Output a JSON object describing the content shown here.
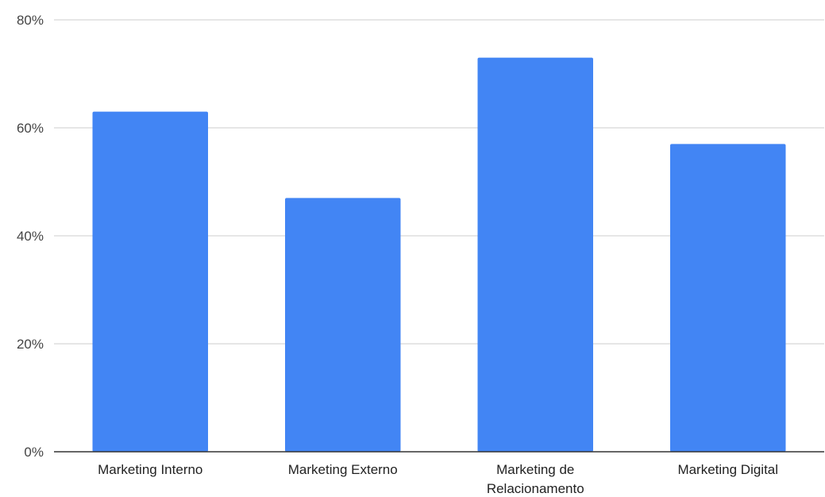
{
  "chart_data": {
    "type": "bar",
    "categories": [
      [
        "Marketing Interno"
      ],
      [
        "Marketing Externo"
      ],
      [
        "Marketing de",
        "Relacionamento"
      ],
      [
        "Marketing Digital"
      ]
    ],
    "values": [
      63,
      47,
      73,
      57
    ],
    "value_unit": "%",
    "ylim": [
      0,
      80
    ],
    "yticks": [
      0,
      20,
      40,
      60,
      80
    ],
    "ytick_labels": [
      "0%",
      "20%",
      "40%",
      "60%",
      "80%"
    ],
    "grid": true,
    "bar_color": "#4285f4",
    "gridline_color": "#cccccc",
    "axis_color": "#333333"
  }
}
